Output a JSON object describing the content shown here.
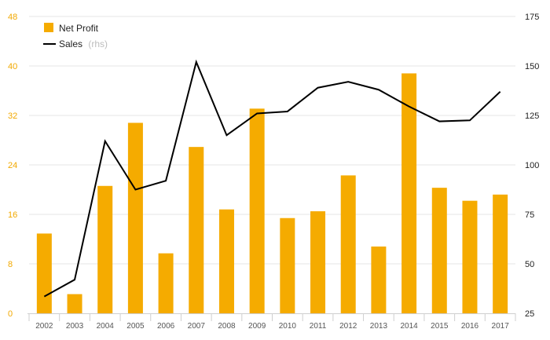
{
  "chart_data": {
    "type": "bar",
    "categories": [
      "2002",
      "2003",
      "2004",
      "2005",
      "2006",
      "2007",
      "2008",
      "2009",
      "2010",
      "2011",
      "2012",
      "2013",
      "2014",
      "2015",
      "2016",
      "2017"
    ],
    "series": [
      {
        "name": "Net Profit",
        "type": "bar",
        "axis": "left",
        "color": "#f5ab00",
        "values": [
          12.9,
          3.1,
          20.6,
          30.8,
          9.7,
          26.9,
          16.8,
          33.1,
          15.4,
          16.5,
          22.3,
          10.8,
          38.8,
          20.3,
          18.2,
          19.2
        ]
      },
      {
        "name": "Sales",
        "type": "line",
        "axis": "right",
        "color": "#000000",
        "values": [
          33.5,
          42,
          112,
          87.5,
          92,
          152,
          115,
          126,
          127,
          139,
          142,
          138,
          129.5,
          122,
          122.5,
          137
        ]
      }
    ],
    "y_left": {
      "ticks": [
        "0",
        "8",
        "16",
        "24",
        "32",
        "40",
        "48"
      ],
      "ylim": [
        0,
        48
      ]
    },
    "y_right": {
      "ticks": [
        "25",
        "50",
        "75",
        "100",
        "125",
        "150",
        "175"
      ],
      "ylim": [
        25,
        175
      ]
    },
    "grid": true,
    "legend": {
      "placement": "top-left",
      "items": [
        {
          "label": "Net Profit",
          "suffix": ""
        },
        {
          "label": "Sales",
          "suffix": "(rhs)"
        }
      ]
    }
  }
}
